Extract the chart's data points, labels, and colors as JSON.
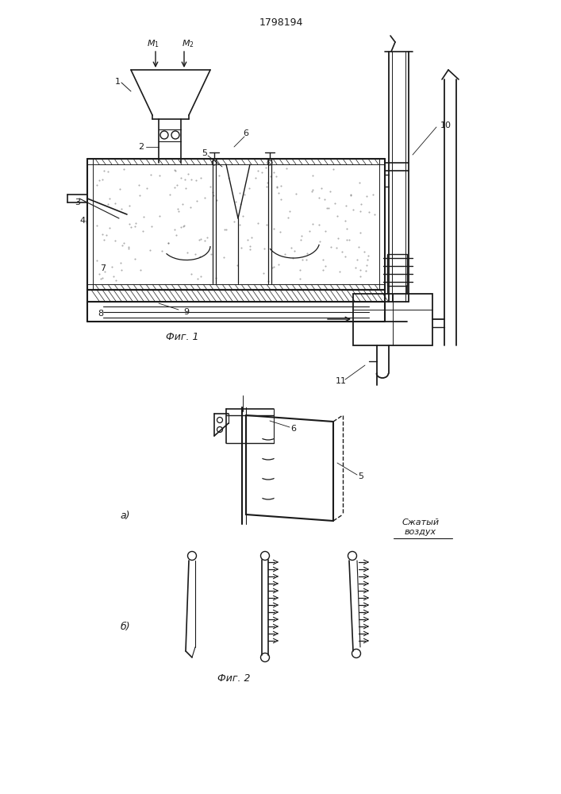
{
  "patent_number": "1798194",
  "fig1_caption": "Фиг. 1",
  "fig2_caption": "Фиг. 2",
  "label_a": "а)",
  "label_b": "б)",
  "compressed_air_line1": "Сжатый",
  "compressed_air_line2": "воздух",
  "bg_color": "#ffffff",
  "line_color": "#1a1a1a"
}
